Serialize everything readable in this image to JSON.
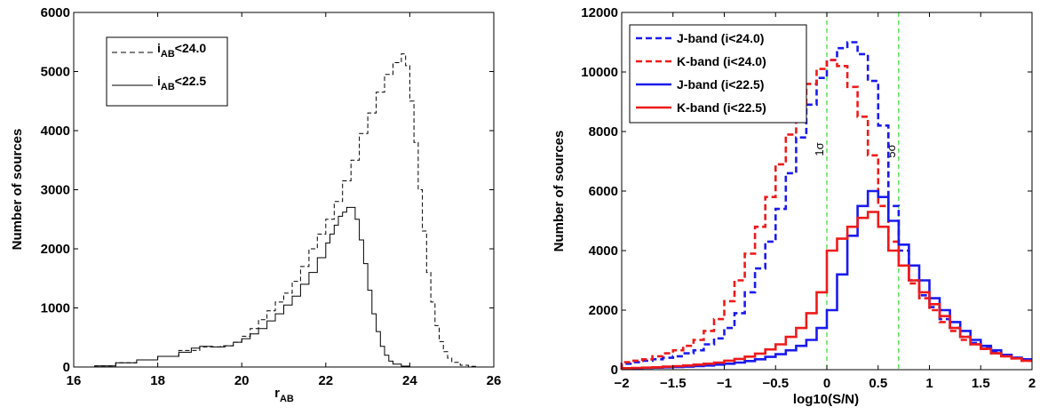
{
  "chart_data": [
    {
      "type": "line",
      "step": true,
      "xlabel": "r",
      "xlabel_sub": "AB",
      "ylabel": "Number of sources",
      "xlim": [
        16,
        26
      ],
      "ylim": [
        0,
        6000
      ],
      "xticks": [
        16,
        18,
        20,
        22,
        24,
        26
      ],
      "yticks": [
        0,
        1000,
        2000,
        3000,
        4000,
        5000,
        6000
      ],
      "grid": false,
      "legend_position": "top-left",
      "bin_width": 0.1,
      "series": [
        {
          "name_main": "i",
          "name_sub": "AB",
          "name_rest": "<24.0",
          "color": "#000000",
          "style": "dashed",
          "x": [
            16.0,
            16.5,
            17.0,
            17.5,
            18.0,
            18.5,
            19.0,
            19.5,
            19.8,
            20.0,
            20.2,
            20.4,
            20.6,
            20.8,
            21.0,
            21.2,
            21.4,
            21.6,
            21.8,
            22.0,
            22.2,
            22.4,
            22.6,
            22.8,
            23.0,
            23.2,
            23.4,
            23.6,
            23.8,
            23.9,
            24.0,
            24.1,
            24.2,
            24.3,
            24.4,
            24.5,
            24.6,
            24.7,
            24.8,
            24.9,
            25.0,
            25.2,
            25.4,
            25.6,
            26.0
          ],
          "y": [
            0,
            20,
            70,
            120,
            180,
            280,
            340,
            360,
            420,
            520,
            650,
            800,
            950,
            1100,
            1250,
            1450,
            1700,
            2000,
            2250,
            2500,
            2800,
            3150,
            3500,
            3950,
            4300,
            4650,
            4950,
            5150,
            5300,
            5100,
            4500,
            3800,
            3000,
            2300,
            1600,
            1100,
            700,
            430,
            260,
            150,
            80,
            30,
            10,
            0,
            0
          ]
        },
        {
          "name_main": "i",
          "name_sub": "AB",
          "name_rest": "<22.5",
          "color": "#000000",
          "style": "solid",
          "x": [
            16.0,
            16.5,
            17.0,
            17.5,
            18.0,
            18.5,
            18.8,
            19.0,
            19.3,
            19.6,
            19.8,
            20.0,
            20.2,
            20.4,
            20.6,
            20.8,
            21.0,
            21.2,
            21.4,
            21.6,
            21.8,
            22.0,
            22.1,
            22.2,
            22.3,
            22.4,
            22.5,
            22.6,
            22.7,
            22.8,
            22.9,
            23.0,
            23.1,
            23.2,
            23.3,
            23.4,
            23.5,
            23.6,
            23.8,
            24.0
          ],
          "y": [
            0,
            20,
            70,
            120,
            180,
            250,
            320,
            350,
            340,
            360,
            420,
            480,
            560,
            650,
            780,
            900,
            1050,
            1200,
            1400,
            1600,
            1850,
            2100,
            2250,
            2400,
            2550,
            2620,
            2700,
            2700,
            2500,
            2150,
            1750,
            1300,
            900,
            600,
            350,
            200,
            100,
            50,
            15,
            0
          ]
        }
      ]
    },
    {
      "type": "line",
      "step": true,
      "xlabel": "log10(S/N)",
      "ylabel": "Number of sources",
      "xlim": [
        -2,
        2
      ],
      "ylim": [
        0,
        12000
      ],
      "xticks": [
        -2,
        -1.5,
        -1,
        -0.5,
        0,
        0.5,
        1,
        1.5,
        2
      ],
      "yticks": [
        0,
        2000,
        4000,
        6000,
        8000,
        10000,
        12000
      ],
      "grid": false,
      "legend_position": "top-left",
      "bin_width": 0.1,
      "vlines": [
        {
          "x": 0,
          "label": "1σ",
          "color": "#33dd33"
        },
        {
          "x": 0.7,
          "label": "5σ",
          "color": "#33dd33"
        }
      ],
      "series": [
        {
          "name": "J-band (i<24.0)",
          "color": "#1a1aee",
          "style": "dashed",
          "x": [
            -2.0,
            -1.9,
            -1.8,
            -1.7,
            -1.6,
            -1.5,
            -1.4,
            -1.3,
            -1.2,
            -1.1,
            -1.0,
            -0.9,
            -0.8,
            -0.7,
            -0.6,
            -0.5,
            -0.4,
            -0.3,
            -0.2,
            -0.1,
            0.0,
            0.1,
            0.2,
            0.3,
            0.4,
            0.5,
            0.6,
            0.7,
            0.8,
            0.9,
            1.0,
            1.1,
            1.2,
            1.3,
            1.4,
            1.5,
            1.6,
            1.7,
            1.8,
            1.9
          ],
          "y": [
            200,
            250,
            300,
            350,
            400,
            450,
            550,
            650,
            850,
            1050,
            1400,
            1900,
            2600,
            3400,
            4300,
            5400,
            6600,
            7800,
            8900,
            9800,
            10400,
            10800,
            11000,
            10600,
            9700,
            8200,
            5500,
            4000,
            3000,
            2500,
            2100,
            1700,
            1400,
            1100,
            900,
            750,
            600,
            500,
            400,
            350
          ]
        },
        {
          "name": "K-band (i<24.0)",
          "color": "#ee1a1a",
          "style": "dashed",
          "x": [
            -2.0,
            -1.9,
            -1.8,
            -1.7,
            -1.6,
            -1.5,
            -1.4,
            -1.3,
            -1.2,
            -1.1,
            -1.0,
            -0.9,
            -0.8,
            -0.7,
            -0.6,
            -0.5,
            -0.4,
            -0.3,
            -0.2,
            -0.1,
            0.0,
            0.1,
            0.2,
            0.3,
            0.4,
            0.5,
            0.6,
            0.7,
            0.8,
            0.9,
            1.0,
            1.1,
            1.2,
            1.3,
            1.4,
            1.5,
            1.6,
            1.7,
            1.8,
            1.9
          ],
          "y": [
            250,
            300,
            350,
            450,
            550,
            650,
            800,
            1000,
            1300,
            1700,
            2300,
            3000,
            3900,
            4800,
            5800,
            6900,
            7900,
            8800,
            9600,
            10100,
            10400,
            10200,
            9500,
            8500,
            7200,
            5500,
            4300,
            3500,
            2900,
            2400,
            2000,
            1600,
            1300,
            1000,
            850,
            700,
            550,
            450,
            380,
            300
          ]
        },
        {
          "name": "J-band (i<22.5)",
          "color": "#1a1aee",
          "style": "solid",
          "x": [
            -2.0,
            -1.9,
            -1.8,
            -1.7,
            -1.6,
            -1.5,
            -1.4,
            -1.3,
            -1.2,
            -1.1,
            -1.0,
            -0.9,
            -0.8,
            -0.7,
            -0.6,
            -0.5,
            -0.4,
            -0.3,
            -0.2,
            -0.1,
            0.0,
            0.1,
            0.2,
            0.3,
            0.4,
            0.5,
            0.6,
            0.7,
            0.8,
            0.9,
            1.0,
            1.1,
            1.2,
            1.3,
            1.4,
            1.5,
            1.6,
            1.7,
            1.8,
            1.9
          ],
          "y": [
            50,
            50,
            60,
            70,
            80,
            90,
            100,
            120,
            140,
            170,
            200,
            240,
            290,
            350,
            430,
            520,
            650,
            800,
            1000,
            1400,
            2000,
            3200,
            4500,
            5500,
            6000,
            5800,
            5000,
            4200,
            3500,
            3000,
            2400,
            2000,
            1600,
            1300,
            1000,
            800,
            650,
            500,
            400,
            350
          ]
        },
        {
          "name": "K-band (i<22.5)",
          "color": "#ee1a1a",
          "style": "solid",
          "x": [
            -2.0,
            -1.9,
            -1.8,
            -1.7,
            -1.6,
            -1.5,
            -1.4,
            -1.3,
            -1.2,
            -1.1,
            -1.0,
            -0.9,
            -0.8,
            -0.7,
            -0.6,
            -0.5,
            -0.4,
            -0.3,
            -0.2,
            -0.1,
            0.0,
            0.1,
            0.2,
            0.3,
            0.4,
            0.5,
            0.6,
            0.7,
            0.8,
            0.9,
            1.0,
            1.1,
            1.2,
            1.3,
            1.4,
            1.5,
            1.6,
            1.7,
            1.8,
            1.9
          ],
          "y": [
            50,
            60,
            70,
            80,
            100,
            120,
            140,
            170,
            200,
            240,
            300,
            360,
            440,
            540,
            680,
            850,
            1100,
            1400,
            1900,
            2600,
            4000,
            4400,
            4800,
            5100,
            5300,
            4800,
            4000,
            3500,
            3000,
            2600,
            2200,
            1800,
            1400,
            1100,
            850,
            700,
            550,
            450,
            380,
            300
          ]
        }
      ]
    }
  ]
}
